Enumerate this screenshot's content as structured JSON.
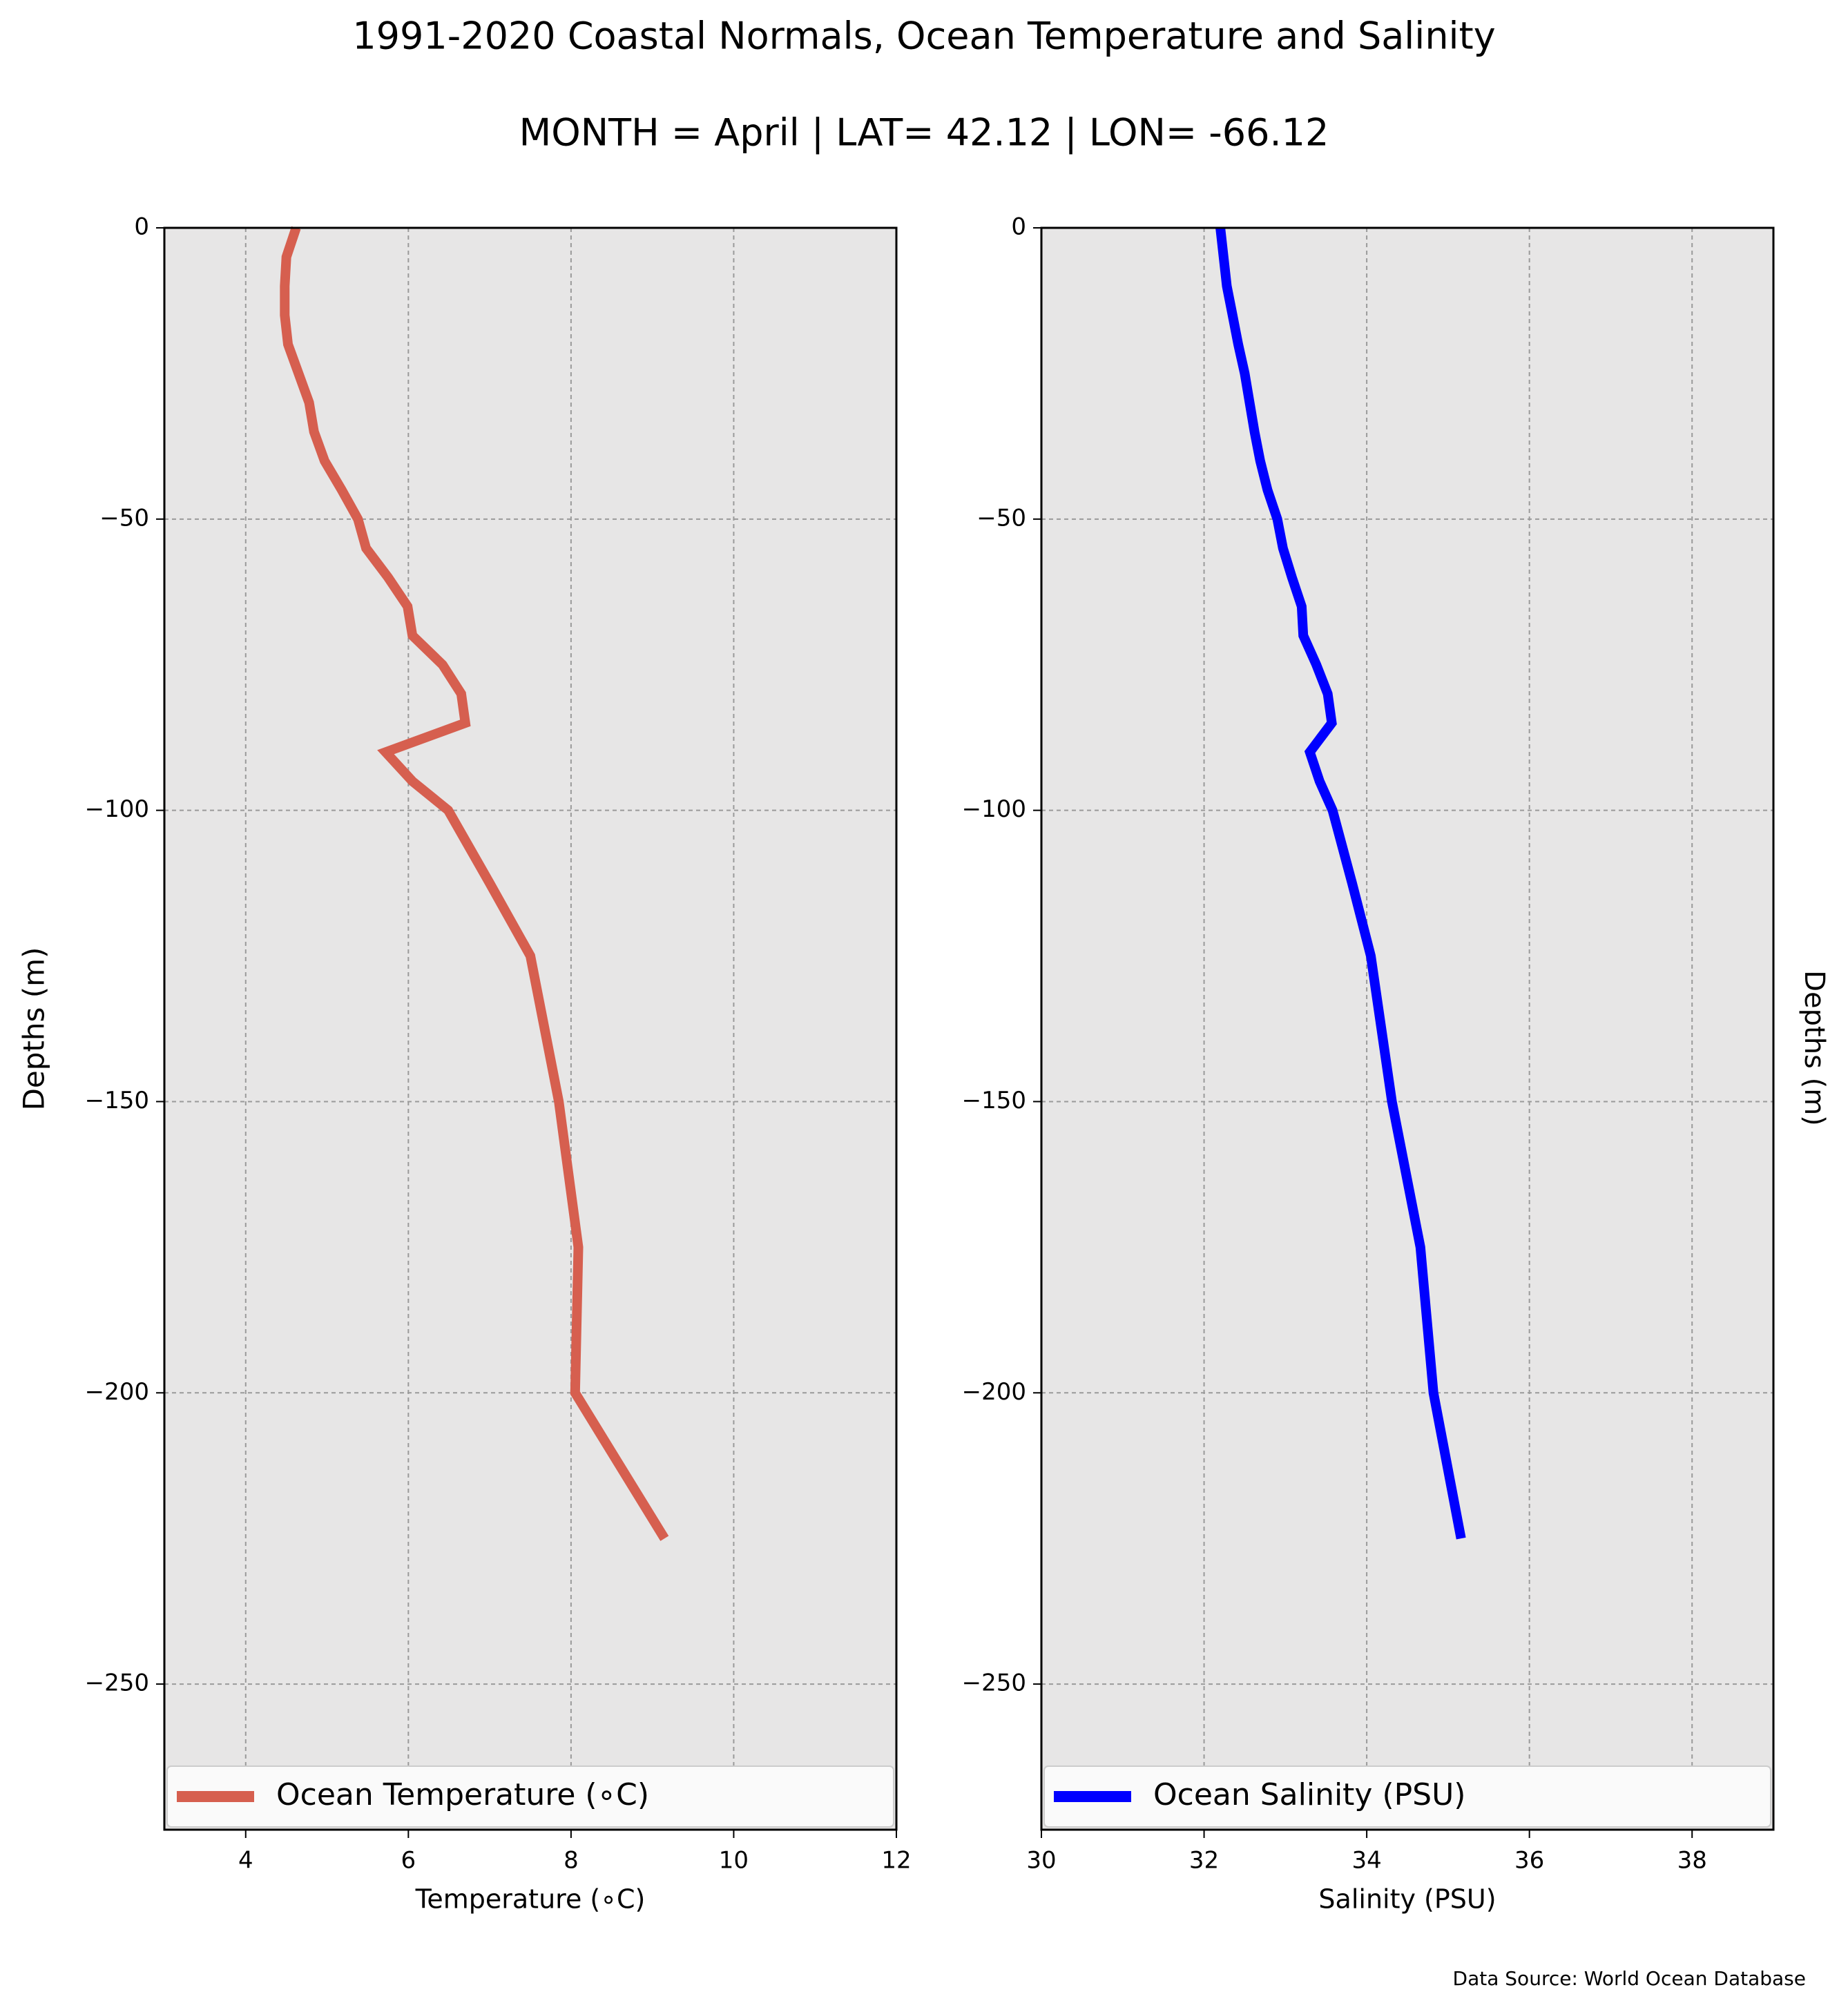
{
  "figure": {
    "title": "1991-2020 Coastal Normals, Ocean Temperature and Salinity",
    "subtitle": "MONTH = April | LAT= 42.12 | LON= -66.12",
    "source_note": "Data Source: World Ocean Database"
  },
  "chart_data": [
    {
      "type": "line",
      "xlabel": "Temperature ($^\\circ$C)",
      "xlabel_display": "Temperature (∘C)",
      "ylabel": "Depths (m)",
      "xlim": [
        3,
        12
      ],
      "ylim": [
        -275,
        0
      ],
      "xticks": [
        4,
        6,
        8,
        10,
        12
      ],
      "yticks": [
        0,
        -50,
        -100,
        -150,
        -200,
        -250
      ],
      "ytick_labels": [
        "0",
        "−50",
        "−100",
        "−150",
        "−200",
        "−250"
      ],
      "grid": true,
      "legend": "bottom",
      "color": "#d65f4f",
      "series": [
        {
          "name": "Ocean Temperature (∘C)",
          "x": [
            4.62,
            4.5,
            4.48,
            4.48,
            4.52,
            4.65,
            4.78,
            4.84,
            4.97,
            5.18,
            5.38,
            5.48,
            5.75,
            5.99,
            6.05,
            6.42,
            6.65,
            6.7,
            5.72,
            6.05,
            6.49,
            7.0,
            7.5,
            7.85,
            8.09,
            8.05
          ],
          "y": [
            0,
            -5,
            -10,
            -15,
            -20,
            -25,
            -30,
            -35,
            -40,
            -45,
            -50,
            -55,
            -60,
            -65,
            -70,
            -75,
            -80,
            -85,
            -90,
            -95,
            -100,
            -112.5,
            -125,
            -150,
            -175,
            -200
          ]
        }
      ],
      "tail_point": {
        "x": 9.15,
        "y": -225
      }
    },
    {
      "type": "line",
      "xlabel": "Salinity (PSU)",
      "ylabel": "Depths (m)",
      "xlim": [
        30,
        39
      ],
      "ylim": [
        -275,
        0
      ],
      "xticks": [
        30,
        32,
        34,
        36,
        38
      ],
      "yticks": [
        0,
        -50,
        -100,
        -150,
        -200,
        -250
      ],
      "ytick_labels": [
        "0",
        "−50",
        "−100",
        "−150",
        "−200",
        "−250"
      ],
      "grid": true,
      "legend": "bottom",
      "color": "#0000ff",
      "series": [
        {
          "name": "Ocean Salinity (PSU)",
          "x": [
            32.2,
            32.24,
            32.28,
            32.35,
            32.42,
            32.5,
            32.56,
            32.62,
            32.69,
            32.78,
            32.9,
            32.97,
            33.08,
            33.2,
            33.22,
            33.38,
            33.52,
            33.57,
            33.3,
            33.42,
            33.58,
            33.82,
            34.05,
            34.31,
            34.66,
            34.82,
            35.16
          ],
          "y": [
            0,
            -5,
            -10,
            -15,
            -20,
            -25,
            -30,
            -35,
            -40,
            -45,
            -50,
            -55,
            -60,
            -65,
            -70,
            -75,
            -80,
            -85,
            -90,
            -95,
            -100,
            -112.5,
            -125,
            -150,
            -175,
            -200,
            -225
          ]
        }
      ]
    }
  ]
}
